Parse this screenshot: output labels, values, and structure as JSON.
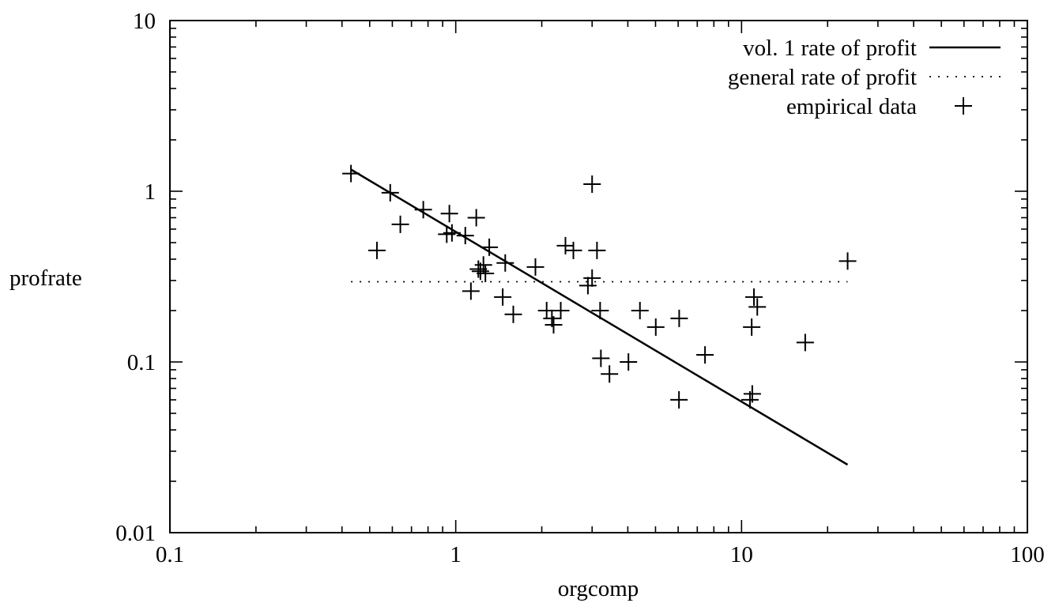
{
  "chart_data": {
    "type": "scatter",
    "title": "",
    "xlabel": "orgcomp",
    "ylabel": "profrate",
    "xscale": "log",
    "yscale": "log",
    "xlim": [
      0.1,
      100
    ],
    "ylim": [
      0.01,
      10
    ],
    "grid": false,
    "legend_position": "top-right",
    "x_tick_labels": [
      "0.1",
      "1",
      "10",
      "100"
    ],
    "y_tick_labels": [
      "0.01",
      "0.1",
      "1",
      "10"
    ],
    "series": [
      {
        "name": "vol. 1 rate of profit",
        "style": "solid-line",
        "color": "#000000",
        "x": [
          0.43,
          23.5
        ],
        "y": [
          1.34,
          0.025
        ]
      },
      {
        "name": "general rate of profit",
        "style": "dotted-line",
        "color": "#000000",
        "x": [
          0.43,
          23.5
        ],
        "y": [
          0.295,
          0.295
        ]
      },
      {
        "name": "empirical data",
        "style": "plus-marker",
        "color": "#000000",
        "x": [
          0.43,
          0.53,
          0.59,
          0.64,
          0.77,
          0.93,
          0.95,
          0.97,
          1.08,
          1.13,
          1.18,
          1.2,
          1.22,
          1.25,
          1.27,
          1.31,
          1.46,
          1.49,
          1.59,
          1.9,
          2.08,
          2.17,
          2.2,
          2.33,
          2.42,
          2.58,
          2.9,
          3.0,
          3.0,
          3.12,
          3.2,
          3.22,
          3.45,
          4.02,
          4.41,
          5.01,
          6.04,
          6.05,
          7.45,
          10.7,
          10.85,
          10.9,
          11.05,
          11.35,
          16.7,
          23.5
        ],
        "y": [
          1.27,
          0.45,
          0.98,
          0.64,
          0.78,
          0.56,
          0.74,
          0.57,
          0.55,
          0.26,
          0.7,
          0.35,
          0.34,
          0.37,
          0.33,
          0.47,
          0.24,
          0.38,
          0.19,
          0.36,
          0.2,
          0.18,
          0.165,
          0.2,
          0.48,
          0.45,
          0.28,
          1.1,
          0.31,
          0.45,
          0.2,
          0.105,
          0.085,
          0.1,
          0.2,
          0.16,
          0.06,
          0.18,
          0.11,
          0.06,
          0.16,
          0.065,
          0.24,
          0.21,
          0.13,
          0.39
        ]
      }
    ]
  }
}
